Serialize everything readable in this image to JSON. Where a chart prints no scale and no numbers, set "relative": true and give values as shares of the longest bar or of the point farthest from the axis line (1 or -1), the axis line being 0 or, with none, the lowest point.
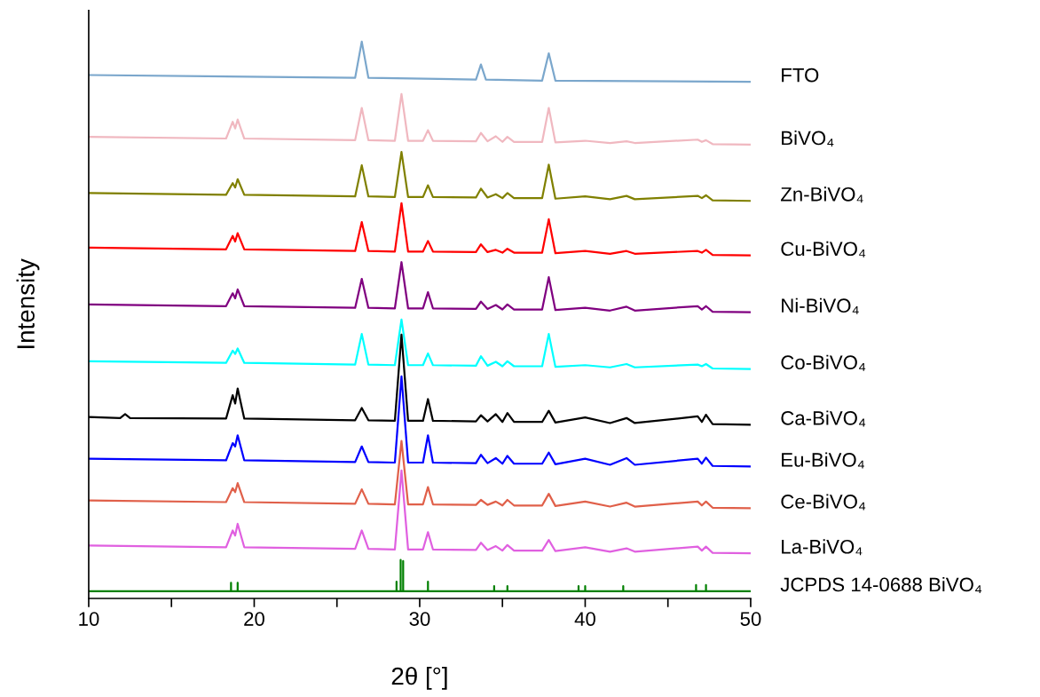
{
  "chart_data": {
    "type": "line",
    "relative": true,
    "xlabel": "2θ [°]",
    "ylabel": "Intensity",
    "xlim": [
      10,
      50
    ],
    "xticks": [
      10,
      {
        "value": 15,
        "label": null
      },
      20,
      {
        "value": 25,
        "label": null
      },
      30,
      {
        "value": 35,
        "label": null
      },
      40,
      {
        "value": 45,
        "label": null
      },
      50
    ],
    "tick_labels": "x",
    "x": [
      10,
      18.3,
      18.7,
      18.85,
      19.0,
      19.4,
      26.1,
      26.5,
      26.9,
      28.5,
      28.9,
      29.3,
      30.2,
      30.5,
      30.8,
      33.4,
      33.7,
      34.1,
      34.6,
      35.0,
      35.3,
      35.7,
      37.4,
      37.8,
      38.2,
      40.0,
      41.5,
      42.5,
      43.0,
      46.8,
      47.05,
      47.3,
      47.7,
      50
    ],
    "series": [
      {
        "name": "FTO",
        "color": "#7ba7cc",
        "x": [
          10,
          26.1,
          26.5,
          26.9,
          33.4,
          33.7,
          34.0,
          37.4,
          37.8,
          38.2,
          50
        ],
        "values": [
          0.94,
          0.935,
          1.0,
          0.935,
          0.932,
          0.959,
          0.932,
          0.93,
          0.979,
          0.93,
          0.928
        ]
      },
      {
        "name": "BiVO₄",
        "color": "#f0b8c0",
        "values": [
          0.829,
          0.826,
          0.856,
          0.844,
          0.86,
          0.826,
          0.823,
          0.881,
          0.823,
          0.822,
          0.906,
          0.822,
          0.822,
          0.841,
          0.822,
          0.821,
          0.836,
          0.821,
          0.83,
          0.82,
          0.829,
          0.82,
          0.82,
          0.881,
          0.819,
          0.822,
          0.818,
          0.821,
          0.818,
          0.824,
          0.82,
          0.823,
          0.816,
          0.815
        ]
      },
      {
        "name": "Zn-BiVO₄",
        "color": "#808000",
        "values": [
          0.728,
          0.725,
          0.746,
          0.738,
          0.753,
          0.725,
          0.722,
          0.778,
          0.722,
          0.721,
          0.802,
          0.721,
          0.721,
          0.742,
          0.721,
          0.72,
          0.736,
          0.72,
          0.726,
          0.719,
          0.728,
          0.719,
          0.719,
          0.779,
          0.718,
          0.722,
          0.717,
          0.723,
          0.717,
          0.723,
          0.719,
          0.724,
          0.715,
          0.714
        ]
      },
      {
        "name": "Cu-BiVO₄",
        "color": "#ff0000",
        "values": [
          0.63,
          0.627,
          0.651,
          0.641,
          0.656,
          0.627,
          0.624,
          0.676,
          0.624,
          0.623,
          0.71,
          0.623,
          0.623,
          0.642,
          0.623,
          0.622,
          0.636,
          0.622,
          0.626,
          0.621,
          0.628,
          0.621,
          0.621,
          0.681,
          0.62,
          0.624,
          0.619,
          0.624,
          0.619,
          0.624,
          0.621,
          0.626,
          0.617,
          0.616
        ]
      },
      {
        "name": "Ni-BiVO₄",
        "color": "#800080",
        "values": [
          0.528,
          0.525,
          0.548,
          0.539,
          0.555,
          0.525,
          0.522,
          0.574,
          0.522,
          0.521,
          0.604,
          0.521,
          0.521,
          0.55,
          0.521,
          0.52,
          0.533,
          0.52,
          0.527,
          0.519,
          0.528,
          0.519,
          0.519,
          0.577,
          0.518,
          0.522,
          0.517,
          0.524,
          0.517,
          0.525,
          0.519,
          0.525,
          0.515,
          0.514
        ]
      },
      {
        "name": "Co-BiVO₄",
        "color": "#00ffff",
        "values": [
          0.426,
          0.423,
          0.445,
          0.439,
          0.449,
          0.423,
          0.42,
          0.475,
          0.42,
          0.419,
          0.501,
          0.419,
          0.419,
          0.44,
          0.419,
          0.418,
          0.435,
          0.418,
          0.425,
          0.417,
          0.426,
          0.417,
          0.417,
          0.475,
          0.416,
          0.419,
          0.415,
          0.421,
          0.415,
          0.42,
          0.417,
          0.421,
          0.413,
          0.412
        ]
      },
      {
        "name": "Ca-BiVO₄",
        "color": "#000000",
        "x": [
          10,
          11.9,
          12.2,
          12.5,
          18.3,
          18.7,
          18.85,
          19.0,
          19.4,
          26.1,
          26.5,
          26.9,
          28.5,
          28.9,
          29.3,
          30.2,
          30.5,
          30.8,
          33.4,
          33.7,
          34.1,
          34.6,
          35.0,
          35.3,
          35.7,
          37.4,
          37.8,
          38.2,
          40.0,
          41.5,
          42.5,
          43.0,
          46.8,
          47.05,
          47.3,
          47.7,
          50
        ],
        "values": [
          0.326,
          0.324,
          0.331,
          0.324,
          0.323,
          0.365,
          0.35,
          0.377,
          0.323,
          0.32,
          0.342,
          0.32,
          0.319,
          0.474,
          0.319,
          0.319,
          0.358,
          0.319,
          0.318,
          0.329,
          0.318,
          0.331,
          0.317,
          0.333,
          0.317,
          0.317,
          0.337,
          0.316,
          0.325,
          0.315,
          0.324,
          0.315,
          0.327,
          0.317,
          0.33,
          0.313,
          0.312
        ]
      },
      {
        "name": "Eu-BiVO₄",
        "color": "#0000ff",
        "values": [
          0.251,
          0.248,
          0.279,
          0.273,
          0.293,
          0.248,
          0.245,
          0.273,
          0.245,
          0.244,
          0.399,
          0.244,
          0.244,
          0.293,
          0.244,
          0.243,
          0.258,
          0.243,
          0.252,
          0.242,
          0.256,
          0.242,
          0.242,
          0.262,
          0.241,
          0.251,
          0.24,
          0.252,
          0.24,
          0.251,
          0.242,
          0.253,
          0.238,
          0.237
        ]
      },
      {
        "name": "Ce-BiVO₄",
        "color": "#e0604a",
        "values": [
          0.176,
          0.173,
          0.198,
          0.191,
          0.207,
          0.173,
          0.17,
          0.196,
          0.17,
          0.169,
          0.283,
          0.169,
          0.169,
          0.2,
          0.169,
          0.168,
          0.177,
          0.168,
          0.174,
          0.167,
          0.177,
          0.167,
          0.167,
          0.188,
          0.166,
          0.174,
          0.165,
          0.172,
          0.165,
          0.174,
          0.167,
          0.174,
          0.163,
          0.162
        ]
      },
      {
        "name": "La-BiVO₄",
        "color": "#e060e0",
        "values": [
          0.095,
          0.092,
          0.122,
          0.113,
          0.134,
          0.092,
          0.089,
          0.122,
          0.089,
          0.088,
          0.23,
          0.088,
          0.088,
          0.119,
          0.088,
          0.087,
          0.1,
          0.087,
          0.094,
          0.086,
          0.096,
          0.086,
          0.086,
          0.105,
          0.085,
          0.092,
          0.084,
          0.09,
          0.084,
          0.093,
          0.086,
          0.093,
          0.082,
          0.081
        ]
      },
      {
        "name": "JCPDS 14-0688 BiVO₄",
        "color": "#008000",
        "x": [
          10,
          18.6,
          18.6,
          18.6,
          19.0,
          19.0,
          19.0,
          28.6,
          28.6,
          28.6,
          28.85,
          28.85,
          28.85,
          29.0,
          29.0,
          29.0,
          30.5,
          30.5,
          30.5,
          34.5,
          34.5,
          34.5,
          35.3,
          35.3,
          35.3,
          39.6,
          39.6,
          39.6,
          40.0,
          40.0,
          40.0,
          42.3,
          42.3,
          42.3,
          46.7,
          46.7,
          46.7,
          47.3,
          47.3,
          47.3,
          50
        ],
        "values": [
          0.013,
          0.013,
          0.028,
          0.013,
          0.013,
          0.028,
          0.013,
          0.013,
          0.03,
          0.013,
          0.013,
          0.069,
          0.013,
          0.013,
          0.067,
          0.013,
          0.013,
          0.03,
          0.013,
          0.013,
          0.022,
          0.013,
          0.013,
          0.022,
          0.013,
          0.013,
          0.022,
          0.013,
          0.013,
          0.022,
          0.013,
          0.013,
          0.022,
          0.013,
          0.013,
          0.024,
          0.013,
          0.013,
          0.024,
          0.013,
          0.013
        ]
      }
    ]
  }
}
